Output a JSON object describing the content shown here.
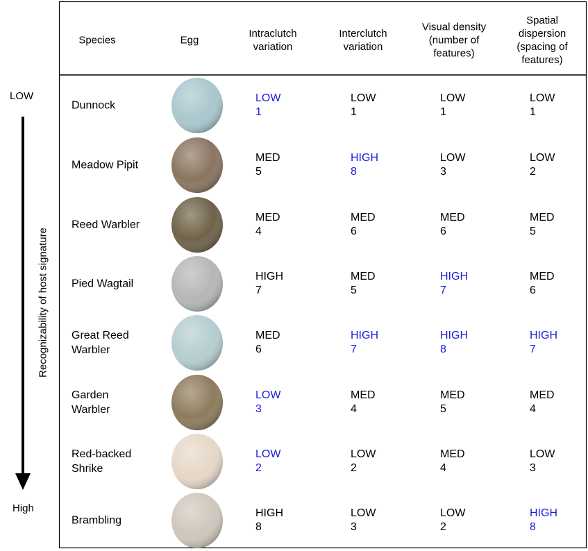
{
  "axis": {
    "top": "LOW",
    "bottom": "High",
    "label": "Recognizability of host signature"
  },
  "table": {
    "headers": [
      "Species",
      "Egg",
      "Intraclutch variation",
      "Interclutch variation",
      "Visual density (number of features)",
      "Spatial dispersion (spacing of features)"
    ],
    "rows": [
      {
        "species": "Dunnock",
        "cells": [
          {
            "level": "LOW",
            "score": 1,
            "highlight": true
          },
          {
            "level": "LOW",
            "score": 1,
            "highlight": false
          },
          {
            "level": "LOW",
            "score": 1,
            "highlight": false
          },
          {
            "level": "LOW",
            "score": 1,
            "highlight": false
          }
        ]
      },
      {
        "species": "Meadow Pipit",
        "cells": [
          {
            "level": "MED",
            "score": 5,
            "highlight": false
          },
          {
            "level": "HIGH",
            "score": 8,
            "highlight": true
          },
          {
            "level": "LOW",
            "score": 3,
            "highlight": false
          },
          {
            "level": "LOW",
            "score": 2,
            "highlight": false
          }
        ]
      },
      {
        "species": "Reed Warbler",
        "cells": [
          {
            "level": "MED",
            "score": 4,
            "highlight": false
          },
          {
            "level": "MED",
            "score": 6,
            "highlight": false
          },
          {
            "level": "MED",
            "score": 6,
            "highlight": false
          },
          {
            "level": "MED",
            "score": 5,
            "highlight": false
          }
        ]
      },
      {
        "species": "Pied Wagtail",
        "cells": [
          {
            "level": "HIGH",
            "score": 7,
            "highlight": false
          },
          {
            "level": "MED",
            "score": 5,
            "highlight": false
          },
          {
            "level": "HIGH",
            "score": 7,
            "highlight": true
          },
          {
            "level": "MED",
            "score": 6,
            "highlight": false
          }
        ]
      },
      {
        "species": "Great Reed Warbler",
        "cells": [
          {
            "level": "MED",
            "score": 6,
            "highlight": false
          },
          {
            "level": "HIGH",
            "score": 7,
            "highlight": true
          },
          {
            "level": "HIGH",
            "score": 8,
            "highlight": true
          },
          {
            "level": "HIGH",
            "score": 7,
            "highlight": true
          }
        ]
      },
      {
        "species": "Garden Warbler",
        "cells": [
          {
            "level": "LOW",
            "score": 3,
            "highlight": true
          },
          {
            "level": "MED",
            "score": 4,
            "highlight": false
          },
          {
            "level": "MED",
            "score": 5,
            "highlight": false
          },
          {
            "level": "MED",
            "score": 4,
            "highlight": false
          }
        ]
      },
      {
        "species": "Red-backed Shrike",
        "cells": [
          {
            "level": "LOW",
            "score": 2,
            "highlight": true
          },
          {
            "level": "LOW",
            "score": 2,
            "highlight": false
          },
          {
            "level": "MED",
            "score": 4,
            "highlight": false
          },
          {
            "level": "LOW",
            "score": 3,
            "highlight": false
          }
        ]
      },
      {
        "species": "Brambling",
        "cells": [
          {
            "level": "HIGH",
            "score": 8,
            "highlight": false
          },
          {
            "level": "LOW",
            "score": 3,
            "highlight": false
          },
          {
            "level": "LOW",
            "score": 2,
            "highlight": false
          },
          {
            "level": "HIGH",
            "score": 8,
            "highlight": true
          }
        ]
      }
    ]
  }
}
